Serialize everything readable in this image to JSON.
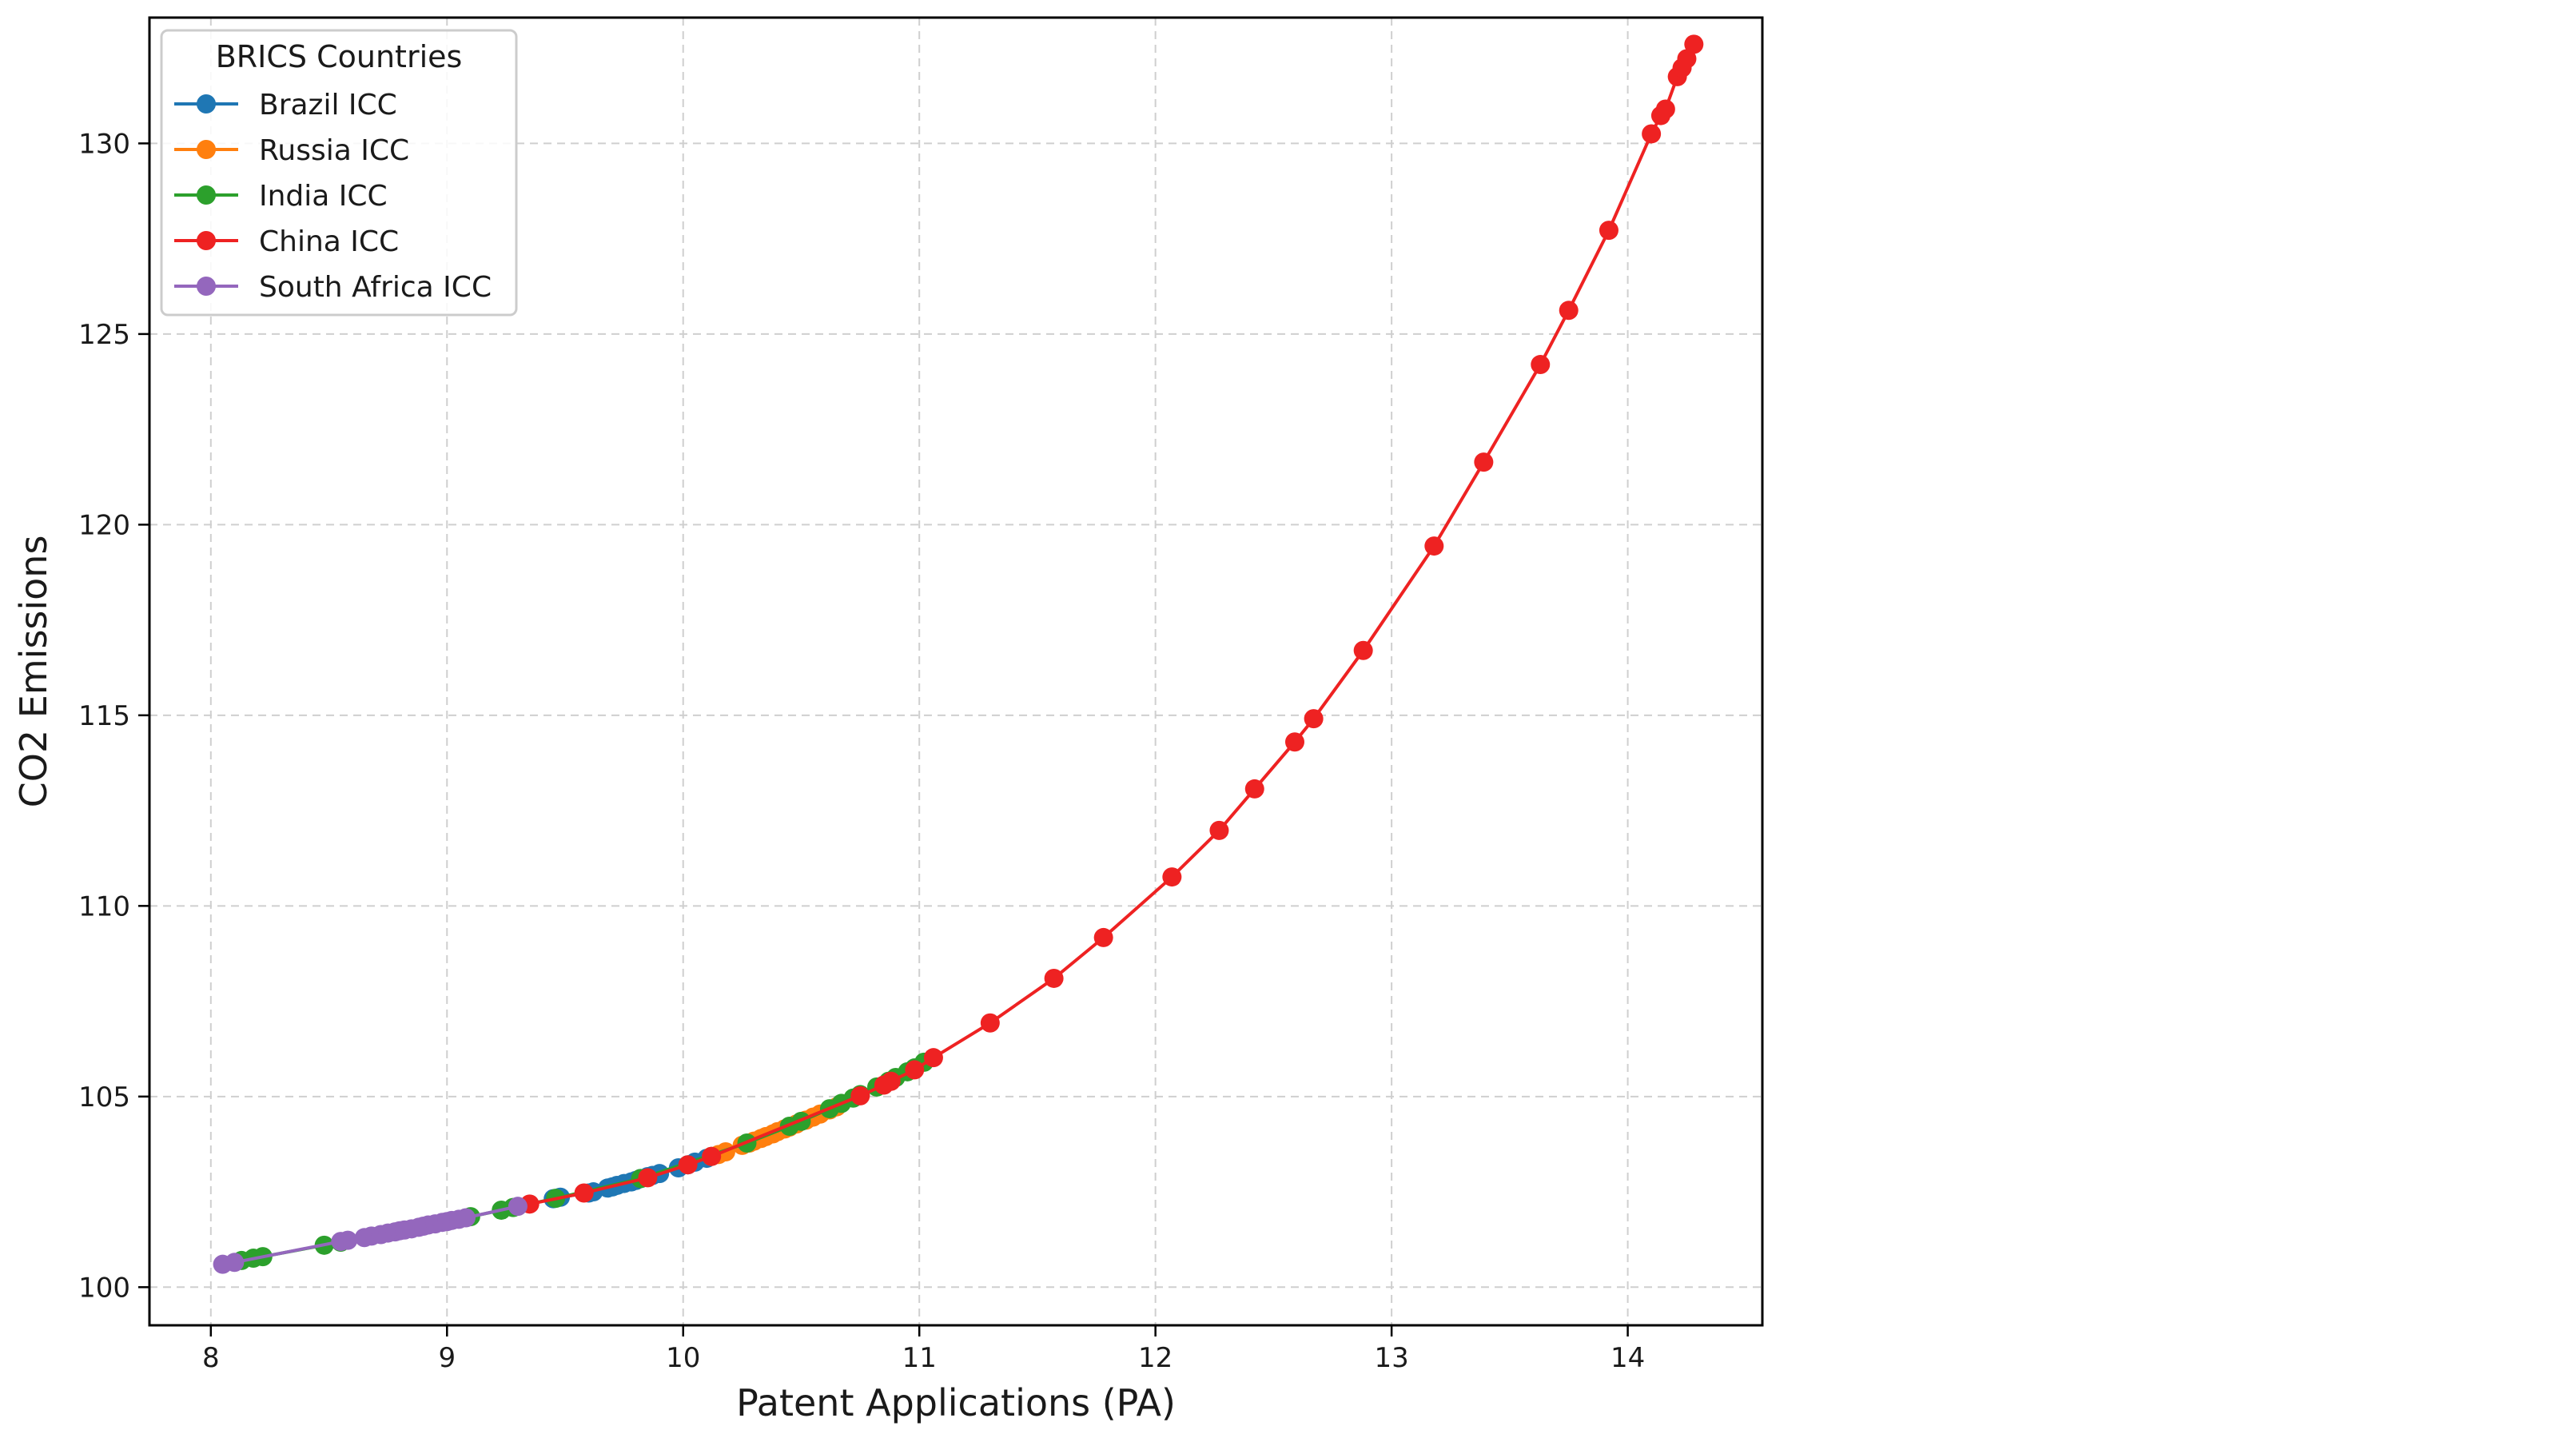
{
  "chart_data": {
    "type": "line",
    "title": "",
    "xlabel": "Patent Applications (PA)",
    "ylabel": "CO2 Emissions",
    "xlim": [
      7.74,
      14.57
    ],
    "ylim": [
      99.0,
      133.3
    ],
    "xticks": [
      8,
      9,
      10,
      11,
      12,
      13,
      14
    ],
    "yticks": [
      100,
      105,
      110,
      115,
      120,
      125,
      130
    ],
    "grid": true,
    "legend": {
      "title": "BRICS Countries",
      "placement": "top-left"
    },
    "series": [
      {
        "name": "Brazil ICC",
        "color": "#1f77b4",
        "x": [
          9.45,
          9.48,
          9.6,
          9.62,
          9.68,
          9.7,
          9.72,
          9.75,
          9.78,
          9.8,
          9.82,
          9.85,
          9.87,
          9.9,
          9.98,
          10.02,
          10.05,
          10.1,
          10.12
        ],
        "y": [
          102.32,
          102.36,
          102.47,
          102.5,
          102.6,
          102.63,
          102.67,
          102.72,
          102.76,
          102.8,
          102.85,
          102.9,
          102.93,
          102.98,
          103.13,
          103.21,
          103.28,
          103.38,
          103.43
        ]
      },
      {
        "name": "Russia ICC",
        "color": "#ff7f0e",
        "x": [
          10.12,
          10.15,
          10.18,
          10.25,
          10.28,
          10.3,
          10.33,
          10.35,
          10.38,
          10.4,
          10.43,
          10.45,
          10.48,
          10.52,
          10.55,
          10.58,
          10.62,
          10.65
        ],
        "y": [
          103.43,
          103.48,
          103.55,
          103.72,
          103.78,
          103.83,
          103.9,
          103.95,
          104.02,
          104.08,
          104.15,
          104.2,
          104.28,
          104.38,
          104.46,
          104.54,
          104.65,
          104.73
        ]
      },
      {
        "name": "India ICC",
        "color": "#2ca02c",
        "x": [
          8.13,
          8.18,
          8.22,
          8.48,
          8.55,
          9.1,
          9.23,
          9.28,
          9.46,
          9.82,
          10.27,
          10.45,
          10.5,
          10.62,
          10.67,
          10.72,
          10.75,
          10.82,
          10.87,
          10.9,
          10.95,
          10.98,
          11.02
        ],
        "y": [
          100.7,
          100.76,
          100.8,
          101.1,
          101.18,
          101.85,
          102.02,
          102.09,
          102.33,
          102.85,
          103.78,
          104.22,
          104.35,
          104.68,
          104.82,
          104.96,
          105.05,
          105.25,
          105.4,
          105.5,
          105.65,
          105.75,
          105.9
        ]
      },
      {
        "name": "China ICC",
        "color": "#ee2222",
        "x": [
          9.35,
          9.58,
          9.85,
          10.02,
          10.12,
          10.75,
          10.85,
          10.88,
          10.98,
          11.06,
          11.3,
          11.57,
          11.78,
          12.07,
          12.27,
          12.42,
          12.59,
          12.67,
          12.88,
          13.18,
          13.39,
          13.63,
          13.75,
          13.92,
          14.1,
          14.14,
          14.16,
          14.21,
          14.23,
          14.25,
          14.28
        ],
        "y": [
          102.18,
          102.47,
          102.87,
          103.21,
          103.43,
          105.02,
          105.3,
          105.4,
          105.7,
          106.02,
          106.93,
          108.1,
          109.17,
          110.76,
          111.98,
          113.07,
          114.3,
          114.91,
          116.7,
          119.44,
          121.64,
          124.2,
          125.62,
          127.72,
          130.25,
          130.73,
          130.9,
          131.75,
          131.98,
          132.22,
          132.6
        ]
      },
      {
        "name": "South Africa ICC",
        "color": "#9467bd",
        "x": [
          8.05,
          8.1,
          8.55,
          8.58,
          8.65,
          8.68,
          8.72,
          8.75,
          8.78,
          8.8,
          8.82,
          8.85,
          8.88,
          8.9,
          8.92,
          8.95,
          8.98,
          9.0,
          9.02,
          9.05,
          9.08,
          9.3
        ],
        "y": [
          100.6,
          100.65,
          101.2,
          101.23,
          101.3,
          101.34,
          101.38,
          101.42,
          101.45,
          101.48,
          101.5,
          101.53,
          101.57,
          101.6,
          101.63,
          101.66,
          101.7,
          101.72,
          101.75,
          101.78,
          101.82,
          102.12
        ]
      }
    ]
  }
}
